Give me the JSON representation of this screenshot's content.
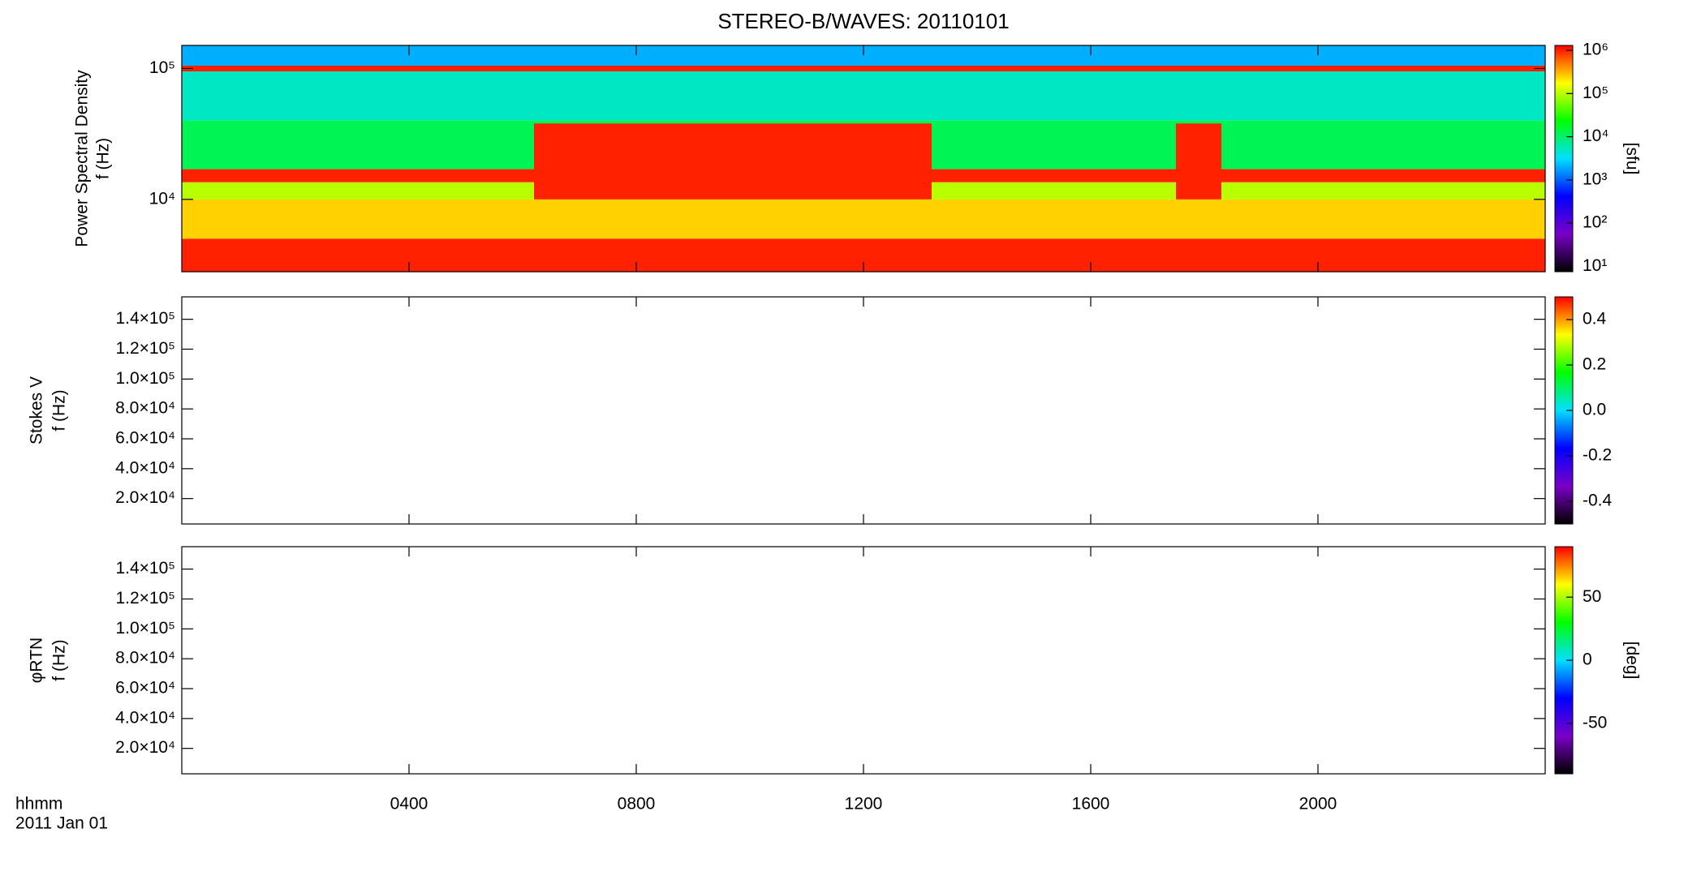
{
  "title": "STEREO-B/WAVES: 20110101",
  "x_axis_label": [
    "hhmm",
    "2011 Jan 01"
  ],
  "xlim": [
    0,
    24
  ],
  "xticks": [
    {
      "value": 4,
      "label": "0400"
    },
    {
      "value": 8,
      "label": "0800"
    },
    {
      "value": 12,
      "label": "1200"
    },
    {
      "value": 16,
      "label": "1600"
    },
    {
      "value": 20,
      "label": "2000"
    }
  ],
  "colormap": [
    "#000000",
    "#7a00c8",
    "#0000ff",
    "#00e0ff",
    "#00ff00",
    "#ffff00",
    "#ff0000"
  ],
  "chart_data": [
    {
      "type": "heatmap",
      "ylabel": [
        "Power Spectral Density",
        "f (Hz)"
      ],
      "ylog": true,
      "ylim": [
        2800,
        150000
      ],
      "yticks": [
        {
          "value": 10000,
          "label": "10⁴"
        },
        {
          "value": 100000,
          "label": "10⁵"
        }
      ],
      "clog": true,
      "clim": [
        7.5,
        1300000
      ],
      "cticks": [
        {
          "value": 10,
          "label": "10¹"
        },
        {
          "value": 100,
          "label": "10²"
        },
        {
          "value": 1000,
          "label": "10³"
        },
        {
          "value": 10000,
          "label": "10⁴"
        },
        {
          "value": 100000,
          "label": "10⁵"
        },
        {
          "value": 1000000,
          "label": "10⁶"
        }
      ],
      "clabel": "[sfu]",
      "bands": [
        {
          "tlim": [
            0,
            24
          ],
          "flim": [
            105000,
            150000
          ],
          "level": 2000
        },
        {
          "tlim": [
            0,
            24
          ],
          "flim": [
            40000,
            95000
          ],
          "level": 5000
        },
        {
          "tlim": [
            0,
            24
          ],
          "flim": [
            95000,
            105000
          ],
          "level": 1000000
        },
        {
          "tlim": [
            0,
            24
          ],
          "flim": [
            17000,
            40000
          ],
          "level": 12000
        },
        {
          "tlim": [
            0,
            24
          ],
          "flim": [
            13500,
            17000
          ],
          "level": 1000000
        },
        {
          "tlim": [
            0,
            24
          ],
          "flim": [
            10000,
            13500
          ],
          "level": 100000
        },
        {
          "tlim": [
            0,
            24
          ],
          "flim": [
            5000,
            10000
          ],
          "level": 250000
        },
        {
          "tlim": [
            0,
            24
          ],
          "flim": [
            2800,
            5000
          ],
          "level": 1000000
        },
        {
          "tlim": [
            6.2,
            13.2
          ],
          "flim": [
            10000,
            38000
          ],
          "level": 1000000
        },
        {
          "tlim": [
            17.5,
            18.3
          ],
          "flim": [
            10000,
            38000
          ],
          "level": 1000000
        }
      ]
    },
    {
      "type": "heatmap",
      "ylabel": [
        "Stokes V",
        "f (Hz)"
      ],
      "ylog": false,
      "ylim": [
        3000,
        155000
      ],
      "yticks": [
        {
          "value": 20000,
          "label": "2.0×10⁴"
        },
        {
          "value": 40000,
          "label": "4.0×10⁴"
        },
        {
          "value": 60000,
          "label": "6.0×10⁴"
        },
        {
          "value": 80000,
          "label": "8.0×10⁴"
        },
        {
          "value": 100000,
          "label": "1.0×10⁵"
        },
        {
          "value": 120000,
          "label": "1.2×10⁵"
        },
        {
          "value": 140000,
          "label": "1.4×10⁵"
        }
      ],
      "clog": false,
      "clim": [
        -0.5,
        0.5
      ],
      "cticks": [
        -0.4,
        -0.2,
        {
          "value": 0,
          "label": "0.0"
        },
        0.2,
        0.4
      ]
    },
    {
      "type": "heatmap",
      "ylabel": [
        "φRTN",
        "f (Hz)"
      ],
      "ylog": false,
      "ylim": [
        3000,
        155000
      ],
      "yticks": [
        {
          "value": 20000,
          "label": "2.0×10⁴"
        },
        {
          "value": 40000,
          "label": "4.0×10⁴"
        },
        {
          "value": 60000,
          "label": "6.0×10⁴"
        },
        {
          "value": 80000,
          "label": "8.0×10⁴"
        },
        {
          "value": 100000,
          "label": "1.0×10⁵"
        },
        {
          "value": 120000,
          "label": "1.2×10⁵"
        },
        {
          "value": 140000,
          "label": "1.4×10⁵"
        }
      ],
      "clog": false,
      "clim": [
        -90,
        90
      ],
      "cticks": [
        -50,
        0,
        50
      ],
      "clabel": "[deg]"
    }
  ]
}
